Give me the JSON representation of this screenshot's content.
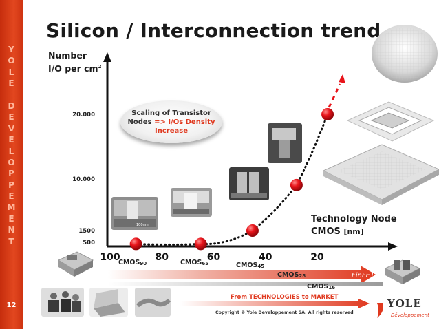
{
  "title": "Silicon / Interconnection trend",
  "sidebar_text": [
    "Y",
    "O",
    "L",
    "E",
    "",
    "D",
    "E",
    "V",
    "E",
    "L",
    "O",
    "P",
    "P",
    "E",
    "M",
    "E",
    "N",
    "T"
  ],
  "page_number": "12",
  "y_axis_label_line1": "Number",
  "y_axis_label_line2": "I/O per cm",
  "y_axis_label_sup": "2",
  "bubble": {
    "line1": "Scaling of Transistor",
    "line2_a": "Nodes",
    "line2_b": "=>",
    "line2_c": "I/Os Density",
    "line3": "Increase"
  },
  "x_axis_label_line1": "Technology Node",
  "x_axis_label_line2": "CMOS",
  "x_axis_label_unit": "[nm]",
  "cmos_labels": [
    {
      "text": "CMOS",
      "sub": "90"
    },
    {
      "text": "CMOS",
      "sub": "65"
    },
    {
      "text": "CMOS",
      "sub": "45"
    },
    {
      "text": "CMOS",
      "sub": "28"
    },
    {
      "text": "CMOS",
      "sub": "16"
    }
  ],
  "finfet_label": "FinFET",
  "bottom_caption": "From TECHNOLOGIES to MARKET",
  "copyright": "Copyright © Yole Developpement SA. All rights reserved",
  "logo_name": "YOLE",
  "logo_sub": "Développement",
  "photo_scale_label": "100nm",
  "colors": {
    "accent": "#e0391f",
    "sidebar": "#d63a17",
    "marker": "#e8141a",
    "axis": "#111111"
  },
  "chart_data": {
    "type": "scatter",
    "x_reversed": true,
    "x_ticks": [
      "100",
      "80",
      "60",
      "40",
      "20"
    ],
    "y_ticks": [
      "500",
      "1500",
      "10.000",
      "20.000"
    ],
    "y_tick_values": [
      500,
      1500,
      10000,
      20000
    ],
    "series": [
      {
        "points": [
          {
            "x": 90,
            "y": 300
          },
          {
            "x": 65,
            "y": 300
          },
          {
            "x": 45,
            "y": 1500
          },
          {
            "x": 28,
            "y": 9000
          },
          {
            "x": 16,
            "y": 20000
          }
        ]
      }
    ],
    "trend": "dotted exponential curve with arrow continuing upward"
  }
}
